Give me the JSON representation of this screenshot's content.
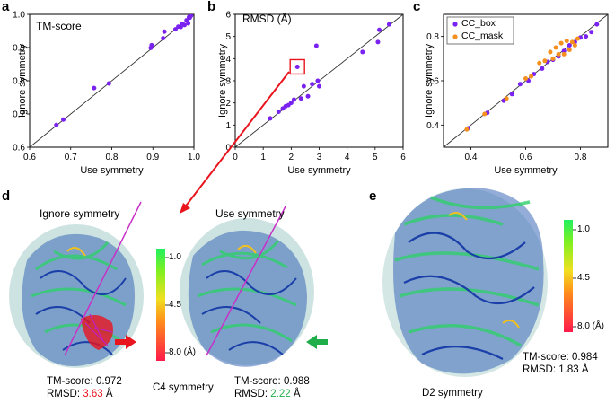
{
  "panel_letters": {
    "a": "a",
    "b": "b",
    "c": "c",
    "d": "d",
    "e": "e"
  },
  "colors": {
    "purple": "#7a22f0",
    "orange": "#f5901e",
    "red": "#e8141e",
    "green": "#1fae4a",
    "diag": "#333333"
  },
  "chart_data": [
    {
      "panel": "a",
      "type": "scatter",
      "title": "TM-score",
      "xlabel": "Use symmetry",
      "ylabel": "Ignore symmetry",
      "xlim": [
        0.6,
        1.0
      ],
      "ylim": [
        0.6,
        1.0
      ],
      "xticks": [
        "0.6",
        "0.7",
        "0.8",
        "0.9",
        "1.0"
      ],
      "yticks": [
        "0.6",
        "0.7",
        "0.8",
        "0.9",
        "1.0"
      ],
      "diagonal": true,
      "series": [
        {
          "color": "#7a22f0",
          "points": [
            [
              0.665,
              0.667
            ],
            [
              0.682,
              0.683
            ],
            [
              0.757,
              0.778
            ],
            [
              0.793,
              0.792
            ],
            [
              0.895,
              0.899
            ],
            [
              0.897,
              0.907
            ],
            [
              0.925,
              0.928
            ],
            [
              0.928,
              0.948
            ],
            [
              0.955,
              0.955
            ],
            [
              0.962,
              0.963
            ],
            [
              0.968,
              0.962
            ],
            [
              0.972,
              0.972
            ],
            [
              0.977,
              0.968
            ],
            [
              0.982,
              0.982
            ],
            [
              0.986,
              0.973
            ],
            [
              0.988,
              0.992
            ],
            [
              0.99,
              0.99
            ],
            [
              0.993,
              0.996
            ]
          ]
        }
      ]
    },
    {
      "panel": "b",
      "type": "scatter",
      "title": "RMSD (Å)",
      "xlabel": "Use symmetry",
      "ylabel": "Ignore symmetry",
      "xlim": [
        0,
        6
      ],
      "ylim": [
        0,
        6
      ],
      "xticks": [
        "0",
        "1",
        "2",
        "3",
        "4",
        "5",
        "6"
      ],
      "yticks": [
        "0",
        "1",
        "2",
        "3",
        "4",
        "5",
        "6"
      ],
      "diagonal": true,
      "highlight": [
        2.22,
        3.63
      ],
      "series": [
        {
          "color": "#7a22f0",
          "points": [
            [
              1.25,
              1.3
            ],
            [
              1.55,
              1.6
            ],
            [
              1.7,
              1.75
            ],
            [
              1.8,
              1.85
            ],
            [
              1.9,
              1.9
            ],
            [
              2.0,
              2.0
            ],
            [
              2.1,
              2.15
            ],
            [
              2.22,
              3.63
            ],
            [
              2.35,
              2.2
            ],
            [
              2.45,
              2.75
            ],
            [
              2.6,
              2.3
            ],
            [
              2.75,
              2.85
            ],
            [
              2.95,
              3.0
            ],
            [
              2.9,
              4.58
            ],
            [
              3.0,
              2.75
            ],
            [
              4.55,
              4.3
            ],
            [
              5.1,
              4.75
            ],
            [
              5.15,
              5.3
            ],
            [
              5.5,
              5.55
            ]
          ]
        }
      ]
    },
    {
      "panel": "c",
      "type": "scatter",
      "xlabel": "Use symmetry",
      "ylabel": "Ignore symmetry",
      "xlim": [
        0.3,
        0.9
      ],
      "ylim": [
        0.3,
        0.9
      ],
      "xticks": [
        "0.4",
        "0.6",
        "0.8"
      ],
      "yticks": [
        "0.4",
        "0.6",
        "0.8"
      ],
      "diagonal": true,
      "legend_position": "top-left",
      "series": [
        {
          "name": "CC_box",
          "color": "#7a22f0",
          "points": [
            [
              0.39,
              0.385
            ],
            [
              0.46,
              0.455
            ],
            [
              0.52,
              0.51
            ],
            [
              0.55,
              0.54
            ],
            [
              0.58,
              0.585
            ],
            [
              0.61,
              0.6
            ],
            [
              0.63,
              0.63
            ],
            [
              0.66,
              0.655
            ],
            [
              0.68,
              0.685
            ],
            [
              0.7,
              0.695
            ],
            [
              0.72,
              0.71
            ],
            [
              0.74,
              0.735
            ],
            [
              0.76,
              0.76
            ],
            [
              0.78,
              0.775
            ],
            [
              0.8,
              0.795
            ],
            [
              0.82,
              0.8
            ],
            [
              0.84,
              0.82
            ],
            [
              0.86,
              0.855
            ]
          ]
        },
        {
          "name": "CC_mask",
          "color": "#f5901e",
          "points": [
            [
              0.385,
              0.38
            ],
            [
              0.45,
              0.45
            ],
            [
              0.53,
              0.52
            ],
            [
              0.6,
              0.61
            ],
            [
              0.62,
              0.62
            ],
            [
              0.65,
              0.68
            ],
            [
              0.67,
              0.69
            ],
            [
              0.69,
              0.73
            ],
            [
              0.7,
              0.7
            ],
            [
              0.71,
              0.75
            ],
            [
              0.72,
              0.72
            ],
            [
              0.73,
              0.77
            ],
            [
              0.74,
              0.72
            ],
            [
              0.75,
              0.78
            ],
            [
              0.76,
              0.74
            ],
            [
              0.77,
              0.775
            ],
            [
              0.78,
              0.76
            ],
            [
              0.79,
              0.79
            ]
          ]
        }
      ]
    }
  ],
  "panel_d": {
    "left_title": "Ignore symmetry",
    "right_title": "Use symmetry",
    "left_tm": "TM-score: 0.972",
    "left_rmsd_prefix": "RMSD: ",
    "left_rmsd_value": "3.63",
    "left_rmsd_unit": " Å",
    "right_tm": "TM-score: 0.988",
    "right_rmsd_prefix": "RMSD: ",
    "right_rmsd_value": "2.22",
    "right_rmsd_unit": " Å",
    "symmetry": "C4 symmetry",
    "colorbar_labels": [
      "1.0",
      "4.5",
      "8.0 (Å)"
    ]
  },
  "panel_e": {
    "tm": "TM-score: 0.984",
    "rmsd": "RMSD: 1.83 Å",
    "symmetry": "D2 symmetry",
    "colorbar_labels": [
      "1.0",
      "4.5",
      "8.0 (Å)"
    ]
  }
}
